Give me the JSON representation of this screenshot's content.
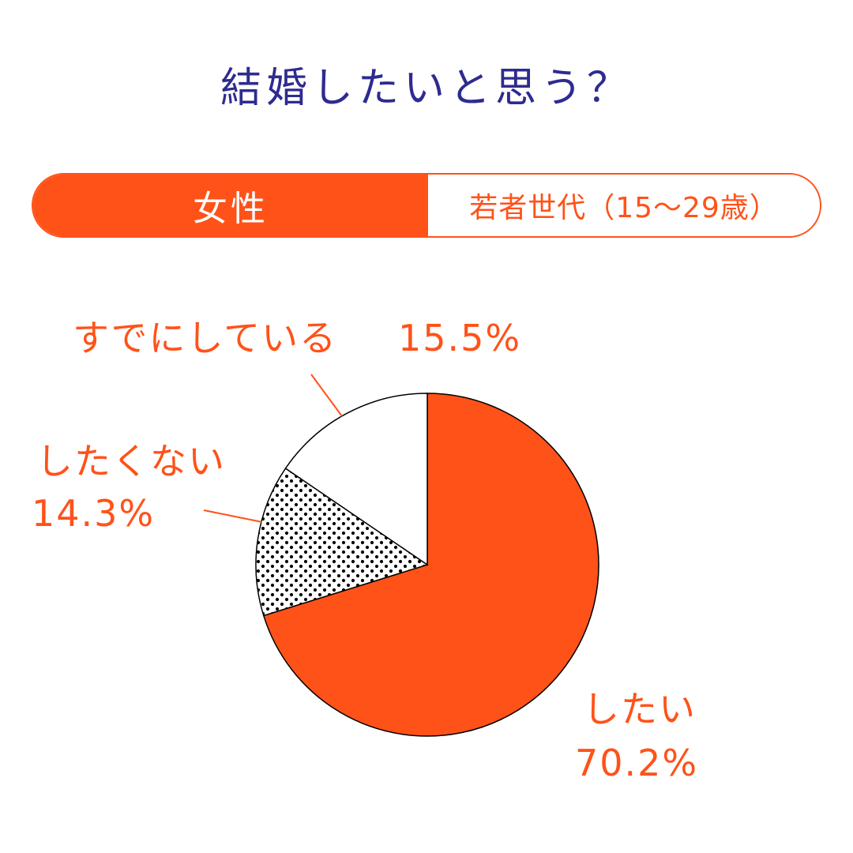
{
  "title": "結婚したいと思う？",
  "segment": {
    "gender": "女性",
    "age_group": "若者世代（15〜29歳）"
  },
  "colors": {
    "title": "#2e2b8f",
    "accent": "#ff5219",
    "pattern_dots": "#000000",
    "empty_slice": "#ffffff"
  },
  "chart_data": {
    "type": "pie",
    "title": "結婚したいと思う？",
    "slices": [
      {
        "label": "したい",
        "value": 70.2,
        "value_label": "70.2%",
        "fill": "solid-orange"
      },
      {
        "label": "したくない",
        "value": 14.3,
        "value_label": "14.3%",
        "fill": "dotted"
      },
      {
        "label": "すでにしている",
        "value": 15.5,
        "value_label": "15.5%",
        "fill": "white"
      }
    ],
    "start": "12 o'clock",
    "direction": "clockwise"
  }
}
